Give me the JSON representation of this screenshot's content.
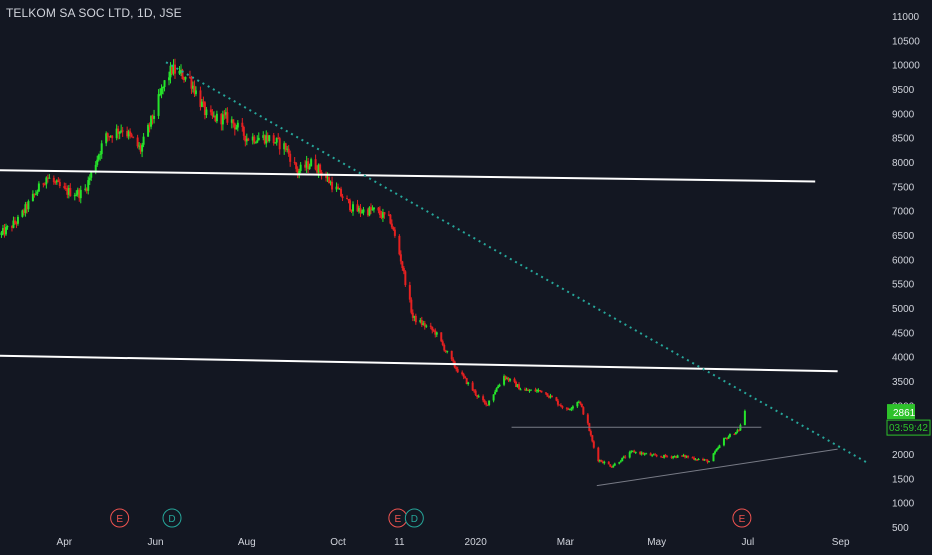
{
  "chart_data": {
    "type": "candlestick",
    "title": "TELKOM SA SOC LTD, 1D, JSE",
    "ylim": [
      500,
      11000
    ],
    "y_ticks": [
      11000,
      10500,
      10000,
      9500,
      9000,
      8500,
      8000,
      7500,
      7000,
      6500,
      6000,
      5500,
      5000,
      4500,
      4000,
      3500,
      3000,
      2500,
      2000,
      1500,
      1000,
      500
    ],
    "x_range": [
      "2019-02-17",
      "2020-09-30"
    ],
    "x_ticks": [
      {
        "label": "Apr",
        "date": "2019-04-01"
      },
      {
        "label": "Jun",
        "date": "2019-06-01"
      },
      {
        "label": "Aug",
        "date": "2019-08-01"
      },
      {
        "label": "Oct",
        "date": "2019-10-01"
      },
      {
        "label": "11",
        "date": "2019-11-11"
      },
      {
        "label": "2020",
        "date": "2020-01-01"
      },
      {
        "label": "Mar",
        "date": "2020-03-01"
      },
      {
        "label": "May",
        "date": "2020-05-01"
      },
      {
        "label": "Jul",
        "date": "2020-07-01"
      },
      {
        "label": "Sep",
        "date": "2020-09-01"
      }
    ],
    "price_path": [
      [
        "2019-02-17",
        6500
      ],
      [
        "2019-03-01",
        6800
      ],
      [
        "2019-03-20",
        7700
      ],
      [
        "2019-04-01",
        7400
      ],
      [
        "2019-04-14",
        7350
      ],
      [
        "2019-04-28",
        8500
      ],
      [
        "2019-05-10",
        8700
      ],
      [
        "2019-05-22",
        8250
      ],
      [
        "2019-05-31",
        9000
      ],
      [
        "2019-06-08",
        9700
      ],
      [
        "2019-06-12",
        9900
      ],
      [
        "2019-06-24",
        9700
      ],
      [
        "2019-07-06",
        8900
      ],
      [
        "2019-07-20",
        8900
      ],
      [
        "2019-08-01",
        8500
      ],
      [
        "2019-08-15",
        8500
      ],
      [
        "2019-08-27",
        8300
      ],
      [
        "2019-09-04",
        7800
      ],
      [
        "2019-09-14",
        8000
      ],
      [
        "2019-09-28",
        7500
      ],
      [
        "2019-10-12",
        7000
      ],
      [
        "2019-10-25",
        7000
      ],
      [
        "2019-11-05",
        6800
      ],
      [
        "2019-11-12",
        6000
      ],
      [
        "2019-11-20",
        4800
      ],
      [
        "2019-12-05",
        4500
      ],
      [
        "2019-12-18",
        3800
      ],
      [
        "2020-01-02",
        3200
      ],
      [
        "2020-01-08",
        3000
      ],
      [
        "2020-01-20",
        3600
      ],
      [
        "2020-02-02",
        3300
      ],
      [
        "2020-02-15",
        3300
      ],
      [
        "2020-03-02",
        2900
      ],
      [
        "2020-03-10",
        3100
      ],
      [
        "2020-03-16",
        2600
      ],
      [
        "2020-03-22",
        1900
      ],
      [
        "2020-04-01",
        1750
      ],
      [
        "2020-04-15",
        2050
      ],
      [
        "2020-05-01",
        1950
      ],
      [
        "2020-05-20",
        1950
      ],
      [
        "2020-06-05",
        1850
      ],
      [
        "2020-06-15",
        2300
      ],
      [
        "2020-06-25",
        2500
      ],
      [
        "2020-06-29",
        2861
      ]
    ],
    "last_price": "2861",
    "countdown": "03:59:42",
    "lines": [
      {
        "from": [
          "2019-02-17",
          7830
        ],
        "to": [
          "2020-08-15",
          7600
        ],
        "color": "#ffffff",
        "style": "solid"
      },
      {
        "from": [
          "2019-02-17",
          4020
        ],
        "to": [
          "2020-08-30",
          3700
        ],
        "color": "#ffffff",
        "style": "solid"
      },
      {
        "from": [
          "2019-06-08",
          10050
        ],
        "to": [
          "2020-09-20",
          1800
        ],
        "color": "#26a69a",
        "style": "dotted"
      },
      {
        "from": [
          "2020-01-25",
          2550
        ],
        "to": [
          "2020-07-10",
          2550
        ],
        "color": "#787b86",
        "style": "solid"
      },
      {
        "from": [
          "2020-03-22",
          1350
        ],
        "to": [
          "2020-08-30",
          2100
        ],
        "color": "#787b86",
        "style": "solid"
      }
    ],
    "events": [
      {
        "label": "E",
        "date": "2019-05-08",
        "color": "#ef5350"
      },
      {
        "label": "D",
        "date": "2019-06-12",
        "color": "#26a69a"
      },
      {
        "label": "E",
        "date": "2019-11-10",
        "color": "#ef5350"
      },
      {
        "label": "D",
        "date": "2019-11-21",
        "color": "#26a69a"
      },
      {
        "label": "E",
        "date": "2020-06-27",
        "color": "#ef5350"
      }
    ],
    "colors": {
      "background": "#131722",
      "up": "#26e32b",
      "down": "#e52121",
      "axis_text": "#d1d4dc",
      "price_label_bg": "#2ec22b"
    },
    "grid": false
  }
}
